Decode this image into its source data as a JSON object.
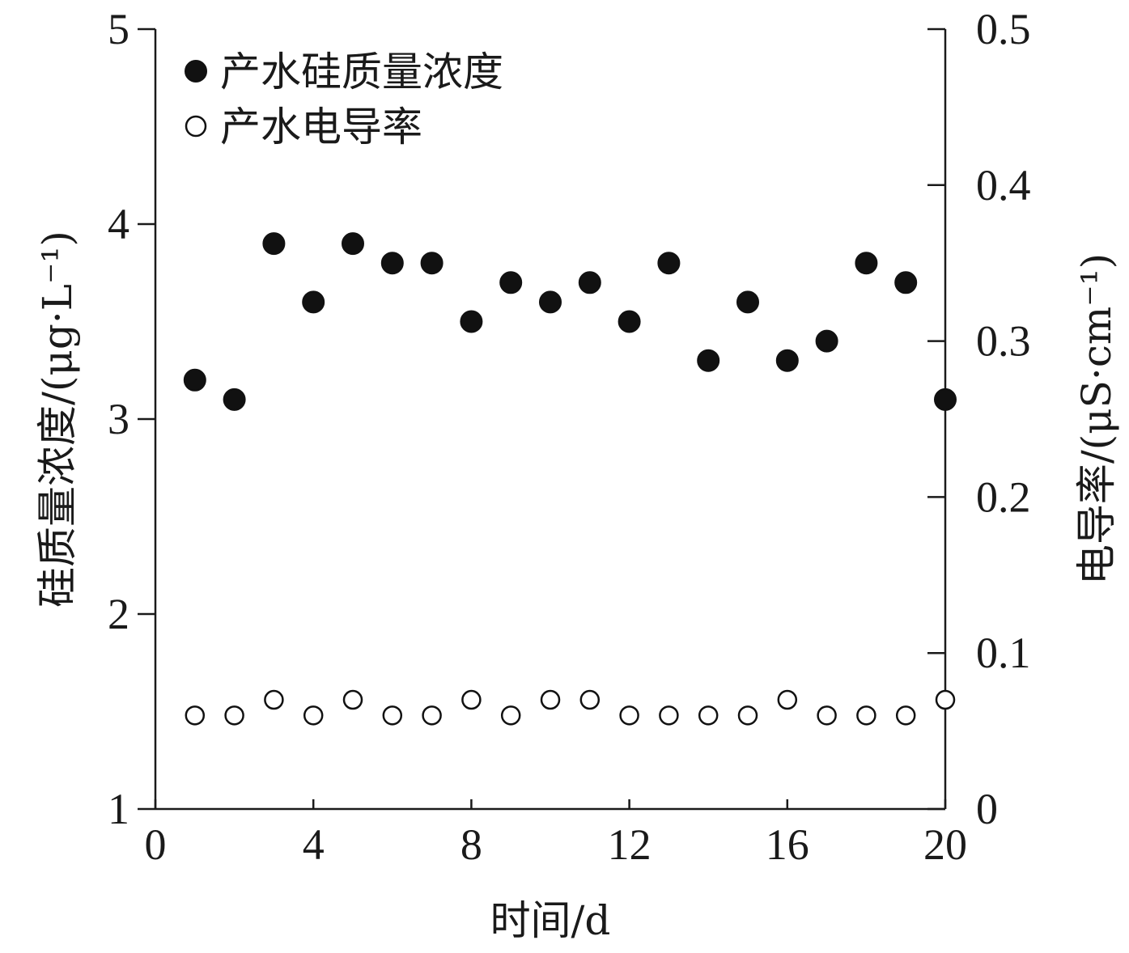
{
  "chart_data": {
    "type": "scatter",
    "xlabel": "时间/d",
    "ylabel_left": "硅质量浓度/(μg·L⁻¹)",
    "ylabel_right": "电导率/(μS·cm⁻¹)",
    "xlim": [
      0,
      20
    ],
    "ylim_left": [
      1,
      5
    ],
    "ylim_right": [
      0,
      0.5
    ],
    "x_ticks": [
      "0",
      "4",
      "8",
      "12",
      "16",
      "20"
    ],
    "y_left_ticks": [
      "1",
      "2",
      "3",
      "4",
      "5"
    ],
    "y_right_ticks": [
      "0",
      "0.1",
      "0.2",
      "0.3",
      "0.4",
      "0.5"
    ],
    "legend_position": "top-left",
    "grid": false,
    "series": [
      {
        "name": "产水硅质量浓度",
        "axis": "left",
        "marker": "filled-circle",
        "x": [
          1,
          2,
          3,
          4,
          5,
          6,
          7,
          8,
          9,
          10,
          11,
          12,
          13,
          14,
          15,
          16,
          17,
          18,
          19,
          20
        ],
        "y": [
          3.2,
          3.1,
          3.9,
          3.6,
          3.9,
          3.8,
          3.8,
          3.5,
          3.7,
          3.6,
          3.7,
          3.5,
          3.8,
          3.3,
          3.6,
          3.3,
          3.4,
          3.8,
          3.7,
          3.1
        ]
      },
      {
        "name": "产水电导率",
        "axis": "right",
        "marker": "open-circle",
        "x": [
          1,
          2,
          3,
          4,
          5,
          6,
          7,
          8,
          9,
          10,
          11,
          12,
          13,
          14,
          15,
          16,
          17,
          18,
          19,
          20
        ],
        "y": [
          0.06,
          0.06,
          0.07,
          0.06,
          0.07,
          0.06,
          0.06,
          0.07,
          0.06,
          0.07,
          0.07,
          0.06,
          0.06,
          0.06,
          0.06,
          0.07,
          0.06,
          0.06,
          0.06,
          0.07
        ]
      }
    ]
  }
}
